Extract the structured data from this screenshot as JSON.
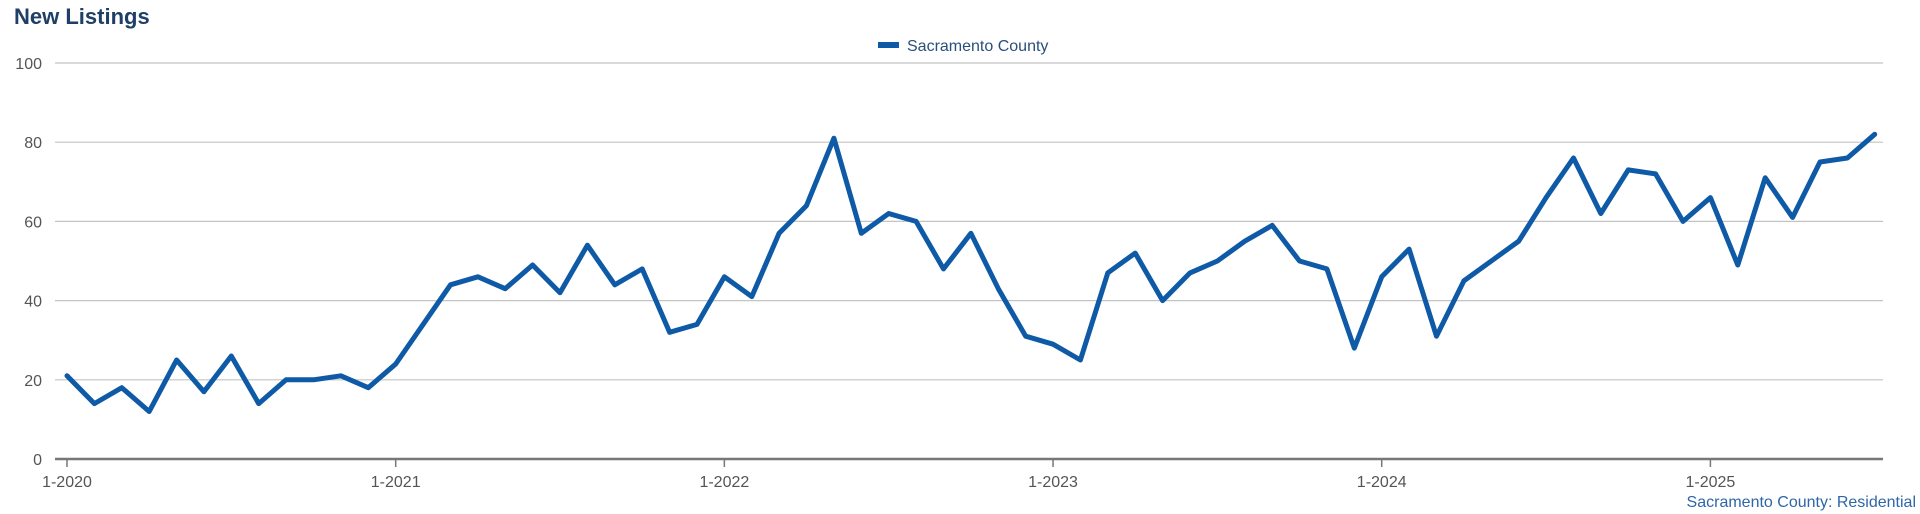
{
  "chart_data": {
    "type": "line",
    "title": "New Listings",
    "footnote": "Sacramento County: Residential",
    "ylim": [
      0,
      100
    ],
    "y_ticks": [
      0,
      20,
      40,
      60,
      80,
      100
    ],
    "x_tick_labels": [
      "1-2020",
      "1-2021",
      "1-2022",
      "1-2023",
      "1-2024",
      "1-2025"
    ],
    "x_tick_indices": [
      0,
      12,
      24,
      36,
      48,
      60
    ],
    "grid": true,
    "legend_position": "top-center",
    "series_color": "#0e5aa7",
    "series": [
      {
        "name": "Sacramento County",
        "values": [
          21,
          14,
          18,
          12,
          25,
          17,
          26,
          14,
          20,
          20,
          21,
          18,
          24,
          34,
          44,
          46,
          43,
          49,
          42,
          54,
          44,
          48,
          32,
          34,
          46,
          41,
          57,
          64,
          81,
          57,
          62,
          60,
          48,
          57,
          43,
          31,
          29,
          25,
          47,
          52,
          40,
          47,
          50,
          55,
          59,
          50,
          48,
          28,
          46,
          53,
          31,
          45,
          50,
          55,
          66,
          76,
          62,
          73,
          72,
          60,
          66,
          49,
          71,
          61,
          75,
          76,
          82
        ]
      }
    ]
  }
}
